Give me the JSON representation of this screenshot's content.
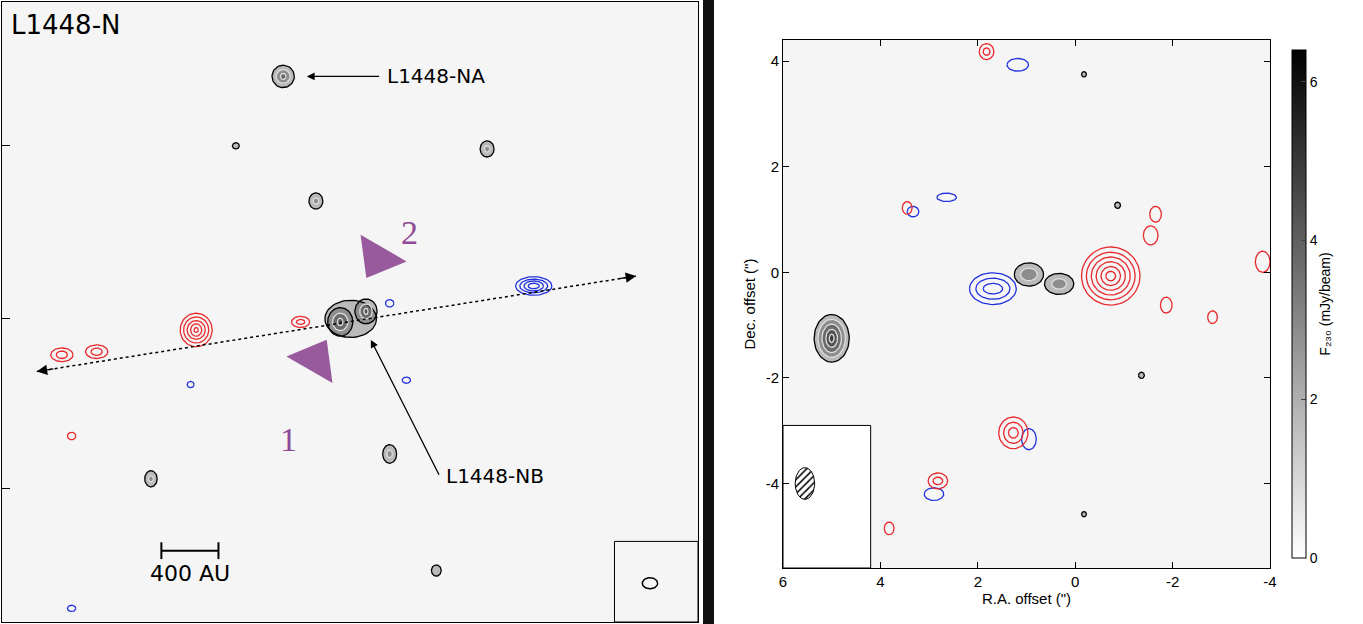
{
  "chart_data": [
    {
      "type": "contour_map",
      "title": "L1448-N",
      "xlim": [
        0,
        100
      ],
      "ylim": [
        0,
        100
      ],
      "yticks": [
        21.5,
        49,
        76.8
      ],
      "tick_labels": false,
      "sources": [
        {
          "color": "#000000",
          "x": 40.4,
          "y": 88,
          "contours": [
            [
              1.6,
              1.8
            ],
            [
              1.0,
              1.1
            ],
            [
              0.4,
              0.5
            ]
          ]
        },
        {
          "color": "#000000",
          "x": 50.1,
          "y": 48.9,
          "contours": [
            [
              3.7,
              3.0
            ]
          ]
        },
        {
          "color": "#000000",
          "x": 48.6,
          "y": 48.4,
          "contours": [
            [
              1.8,
              2.3
            ],
            [
              1.1,
              1.4
            ],
            [
              0.4,
              0.6
            ]
          ]
        },
        {
          "color": "#000000",
          "x": 52.3,
          "y": 50.1,
          "contours": [
            [
              1.6,
              2.0
            ],
            [
              0.9,
              1.2
            ],
            [
              0.3,
              0.5
            ]
          ]
        },
        {
          "color": "#000000",
          "x": 33.6,
          "y": 76.8,
          "contours": [
            [
              0.5,
              0.5
            ]
          ]
        },
        {
          "color": "#000000",
          "x": 69.7,
          "y": 76.3,
          "contours": [
            [
              1.0,
              1.3
            ],
            [
              0.4,
              0.5
            ]
          ]
        },
        {
          "color": "#000000",
          "x": 45.1,
          "y": 67.9,
          "contours": [
            [
              1.0,
              1.3
            ],
            [
              0.4,
              0.5
            ]
          ]
        },
        {
          "color": "#000000",
          "x": 55.7,
          "y": 27.1,
          "contours": [
            [
              1.0,
              1.5
            ],
            [
              0.4,
              0.6
            ]
          ]
        },
        {
          "color": "#000000",
          "x": 21.4,
          "y": 23.1,
          "contours": [
            [
              0.9,
              1.3
            ],
            [
              0.35,
              0.5
            ]
          ]
        },
        {
          "color": "#000000",
          "x": 62.4,
          "y": 8.3,
          "contours": [
            [
              0.7,
              0.9
            ]
          ]
        },
        {
          "color": "#e8282c",
          "x": 27.9,
          "y": 47.1,
          "contours": [
            [
              2.3,
              2.7
            ],
            [
              1.8,
              2.1
            ],
            [
              1.3,
              1.5
            ],
            [
              0.8,
              1.0
            ],
            [
              0.3,
              0.4
            ]
          ]
        },
        {
          "color": "#e8282c",
          "x": 42.9,
          "y": 48.4,
          "contours": [
            [
              1.3,
              0.9
            ],
            [
              0.6,
              0.4
            ]
          ]
        },
        {
          "color": "#e8282c",
          "x": 8.6,
          "y": 43.1,
          "contours": [
            [
              1.6,
              1.1
            ],
            [
              0.8,
              0.6
            ]
          ]
        },
        {
          "color": "#e8282c",
          "x": 13.6,
          "y": 43.6,
          "contours": [
            [
              1.6,
              1.1
            ],
            [
              0.8,
              0.6
            ]
          ]
        },
        {
          "color": "#e8282c",
          "x": 10,
          "y": 30,
          "contours": [
            [
              0.6,
              0.6
            ]
          ]
        },
        {
          "color": "#2233dd",
          "x": 76.4,
          "y": 54.2,
          "contours": [
            [
              2.6,
              1.5
            ],
            [
              2.0,
              1.1
            ],
            [
              1.4,
              0.8
            ],
            [
              0.8,
              0.45
            ]
          ]
        },
        {
          "color": "#2233dd",
          "x": 55.7,
          "y": 51.4,
          "contours": [
            [
              0.6,
              0.6
            ]
          ]
        },
        {
          "color": "#2233dd",
          "x": 58.1,
          "y": 39,
          "contours": [
            [
              0.6,
              0.5
            ]
          ]
        },
        {
          "color": "#2233dd",
          "x": 27.1,
          "y": 38.3,
          "contours": [
            [
              0.5,
              0.5
            ]
          ]
        },
        {
          "color": "#2233dd",
          "x": 10,
          "y": 2.2,
          "contours": [
            [
              0.6,
              0.5
            ]
          ]
        }
      ],
      "labels": [
        {
          "text": "L1448-NA",
          "x": 55,
          "y": 88,
          "arrow_to": [
            43.8,
            88
          ]
        },
        {
          "text": "L1448-NB",
          "x": 63.5,
          "y": 23.5,
          "arrow_to": [
            53,
            45.5
          ]
        }
      ],
      "outflow_axis": {
        "x": [
          5,
          91.1
        ],
        "y": [
          40.4,
          55.8
        ]
      },
      "markers": [
        {
          "text": "1",
          "x": 45,
          "y": 42.3,
          "label_x": 41.1,
          "label_y": 29.5,
          "marker": "triangle-up",
          "color": "#8e4a94"
        },
        {
          "text": "2",
          "x": 54,
          "y": 58.7,
          "label_x": 58.6,
          "label_y": 62.8,
          "marker": "triangle-down",
          "color": "#8e4a94"
        }
      ],
      "scale_bar": {
        "text": "400 AU",
        "x": [
          22.9,
          31.1
        ],
        "y": 11.5
      },
      "beam": {
        "x": 93.1,
        "y": 6.25,
        "rx": 1.1,
        "ry": 0.9
      }
    },
    {
      "type": "contour_map",
      "x_label": "R.A. offset (\")",
      "y_label": "Dec. offset (\")",
      "xlim": [
        6,
        -4
      ],
      "ylim": [
        -5.6,
        4.4
      ],
      "xticks": [
        6,
        4,
        2,
        0,
        -2,
        -4
      ],
      "yticks": [
        -4,
        -2,
        0,
        2,
        4
      ],
      "sources": [
        {
          "color": "#000000",
          "x": 5.0,
          "y": -1.25,
          "contours": [
            [
              0.36,
              0.45
            ],
            [
              0.28,
              0.36
            ],
            [
              0.2,
              0.27
            ],
            [
              0.12,
              0.17
            ],
            [
              0.05,
              0.08
            ]
          ]
        },
        {
          "color": "#000000",
          "x": 0.95,
          "y": -0.04,
          "contours": [
            [
              0.3,
              0.22
            ],
            [
              0.17,
              0.12
            ]
          ]
        },
        {
          "color": "#000000",
          "x": 0.33,
          "y": -0.22,
          "contours": [
            [
              0.3,
              0.2
            ],
            [
              0.15,
              0.1
            ]
          ]
        },
        {
          "color": "#000000",
          "x": -0.18,
          "y": 3.75,
          "contours": [
            [
              0.05,
              0.05
            ]
          ]
        },
        {
          "color": "#000000",
          "x": -0.87,
          "y": 1.27,
          "contours": [
            [
              0.06,
              0.06
            ]
          ]
        },
        {
          "color": "#000000",
          "x": -1.36,
          "y": -1.95,
          "contours": [
            [
              0.06,
              0.06
            ]
          ]
        },
        {
          "color": "#000000",
          "x": -0.18,
          "y": -4.58,
          "contours": [
            [
              0.05,
              0.05
            ]
          ]
        },
        {
          "color": "#2233dd",
          "x": 1.69,
          "y": -0.31,
          "contours": [
            [
              0.48,
              0.3
            ],
            [
              0.35,
              0.2
            ],
            [
              0.2,
              0.1
            ]
          ]
        },
        {
          "color": "#2233dd",
          "x": 1.18,
          "y": 3.93,
          "contours": [
            [
              0.22,
              0.12
            ]
          ]
        },
        {
          "color": "#2233dd",
          "x": 3.33,
          "y": 1.15,
          "contours": [
            [
              0.12,
              0.1
            ]
          ]
        },
        {
          "color": "#2233dd",
          "x": 2.64,
          "y": 1.42,
          "contours": [
            [
              0.2,
              0.08
            ]
          ]
        },
        {
          "color": "#2233dd",
          "x": 0.95,
          "y": -3.16,
          "contours": [
            [
              0.15,
              0.2
            ]
          ]
        },
        {
          "color": "#2233dd",
          "x": 2.9,
          "y": -4.2,
          "contours": [
            [
              0.2,
              0.12
            ]
          ]
        },
        {
          "color": "#e8282c",
          "x": -0.73,
          "y": -0.07,
          "contours": [
            [
              0.6,
              0.55
            ],
            [
              0.5,
              0.45
            ],
            [
              0.4,
              0.36
            ],
            [
              0.3,
              0.27
            ],
            [
              0.2,
              0.18
            ],
            [
              0.1,
              0.09
            ]
          ]
        },
        {
          "color": "#e8282c",
          "x": 1.82,
          "y": 4.18,
          "contours": [
            [
              0.15,
              0.15
            ],
            [
              0.07,
              0.07
            ]
          ]
        },
        {
          "color": "#e8282c",
          "x": 3.45,
          "y": 1.22,
          "contours": [
            [
              0.1,
              0.12
            ]
          ]
        },
        {
          "color": "#e8282c",
          "x": -1.55,
          "y": 0.7,
          "contours": [
            [
              0.15,
              0.18
            ]
          ]
        },
        {
          "color": "#e8282c",
          "x": -1.65,
          "y": 1.1,
          "contours": [
            [
              0.12,
              0.15
            ]
          ]
        },
        {
          "color": "#e8282c",
          "x": -1.87,
          "y": -0.62,
          "contours": [
            [
              0.12,
              0.15
            ]
          ]
        },
        {
          "color": "#e8282c",
          "x": -2.82,
          "y": -0.85,
          "contours": [
            [
              0.1,
              0.12
            ]
          ]
        },
        {
          "color": "#e8282c",
          "x": -3.85,
          "y": 0.2,
          "contours": [
            [
              0.15,
              0.2
            ]
          ]
        },
        {
          "color": "#e8282c",
          "x": 1.27,
          "y": -3.04,
          "contours": [
            [
              0.3,
              0.3
            ],
            [
              0.2,
              0.2
            ],
            [
              0.1,
              0.1
            ]
          ]
        },
        {
          "color": "#e8282c",
          "x": 2.82,
          "y": -3.95,
          "contours": [
            [
              0.2,
              0.15
            ],
            [
              0.1,
              0.07
            ]
          ]
        },
        {
          "color": "#e8282c",
          "x": 3.82,
          "y": -4.85,
          "contours": [
            [
              0.1,
              0.12
            ]
          ]
        }
      ],
      "beam": {
        "x": 5.55,
        "y": -4.0,
        "rx": 0.2,
        "ry": 0.3
      },
      "colorbar": {
        "title": "F₂₃₀ (mJy/beam)",
        "range": [
          0,
          6.4
        ],
        "ticks": [
          0,
          2,
          4,
          6
        ]
      }
    }
  ]
}
